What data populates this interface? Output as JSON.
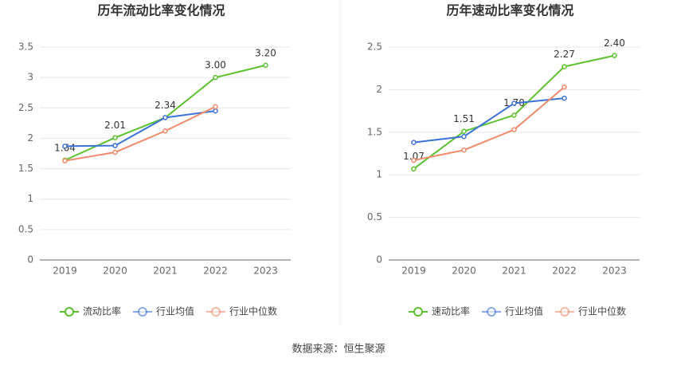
{
  "chart_data": [
    {
      "type": "line",
      "title": "历年流动比率变化情况",
      "categories": [
        "2019",
        "2020",
        "2021",
        "2022",
        "2023"
      ],
      "series": [
        {
          "name": "流动比率",
          "color": "#5cc12f",
          "values": [
            1.64,
            2.01,
            2.34,
            3.0,
            3.2
          ],
          "value_labels": [
            "1.64",
            "2.01",
            "2.34",
            "3.00",
            "3.20"
          ]
        },
        {
          "name": "行业均值",
          "color": "#3d72d9",
          "values": [
            1.87,
            1.88,
            2.34,
            2.45,
            null
          ]
        },
        {
          "name": "行业中位数",
          "color": "#f08b6b",
          "values": [
            1.63,
            1.77,
            2.12,
            2.52,
            null
          ]
        }
      ],
      "ylim": [
        0,
        3.5
      ],
      "yticks": [
        0,
        0.5,
        1,
        1.5,
        2,
        2.5,
        3,
        3.5
      ],
      "grid": true
    },
    {
      "type": "line",
      "title": "历年速动比率变化情况",
      "categories": [
        "2019",
        "2020",
        "2021",
        "2022",
        "2023"
      ],
      "series": [
        {
          "name": "速动比率",
          "color": "#5cc12f",
          "values": [
            1.07,
            1.51,
            1.7,
            2.27,
            2.4
          ],
          "value_labels": [
            "1.07",
            "1.51",
            "1.70",
            "2.27",
            "2.40"
          ]
        },
        {
          "name": "行业均值",
          "color": "#3d72d9",
          "values": [
            1.38,
            1.45,
            1.84,
            1.9,
            null
          ]
        },
        {
          "name": "行业中位数",
          "color": "#f08b6b",
          "values": [
            1.17,
            1.29,
            1.53,
            2.03,
            null
          ]
        }
      ],
      "ylim": [
        0,
        2.5
      ],
      "yticks": [
        0,
        0.5,
        1,
        1.5,
        2,
        2.5
      ],
      "grid": true
    }
  ],
  "source": "数据来源：恒生聚源"
}
